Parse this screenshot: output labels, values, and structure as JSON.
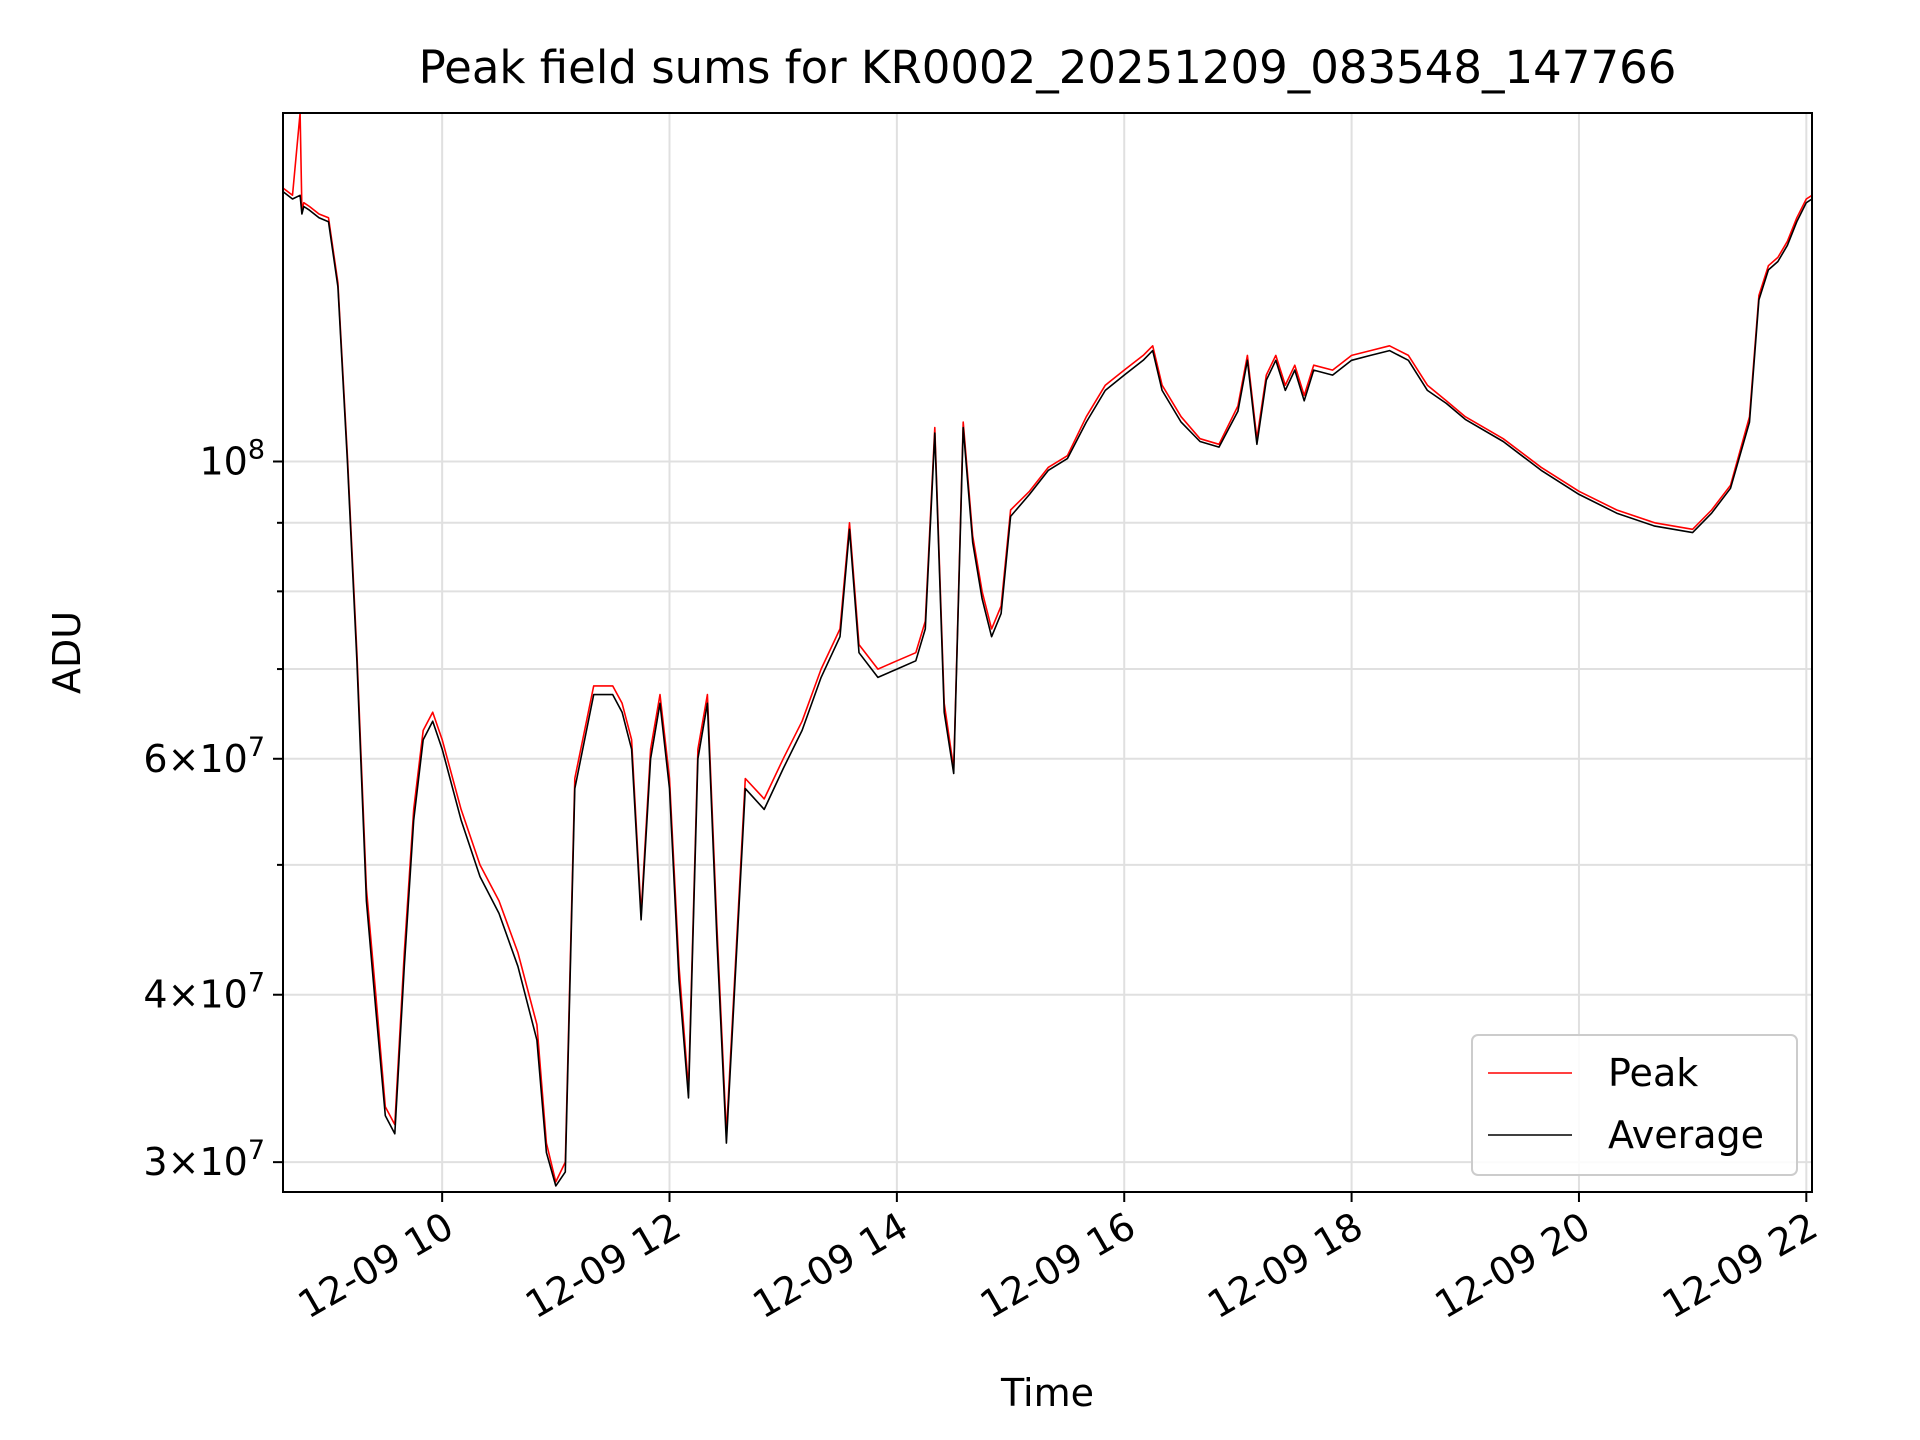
{
  "chart_data": {
    "type": "line",
    "title": "Peak field sums for KR0002_20251209_083548_147766",
    "xlabel": "Time",
    "ylabel": "ADU",
    "yscale": "log",
    "grid": true,
    "legend_position": "bottom-right",
    "xlim": [
      "2025-12-09 08:36",
      "2025-12-09 22:03"
    ],
    "ylim": [
      28500000,
      182000000
    ],
    "x_ticks": [
      {
        "value": "2025-12-09 10:00",
        "label": "12-09 10"
      },
      {
        "value": "2025-12-09 12:00",
        "label": "12-09 12"
      },
      {
        "value": "2025-12-09 14:00",
        "label": "12-09 14"
      },
      {
        "value": "2025-12-09 16:00",
        "label": "12-09 16"
      },
      {
        "value": "2025-12-09 18:00",
        "label": "12-09 18"
      },
      {
        "value": "2025-12-09 20:00",
        "label": "12-09 20"
      },
      {
        "value": "2025-12-09 22:00",
        "label": "12-09 22"
      }
    ],
    "y_ticks": [
      {
        "value": 30000000,
        "mantissa": "3",
        "times": "×",
        "base": "10",
        "exp": "7"
      },
      {
        "value": 40000000,
        "mantissa": "4",
        "times": "×",
        "base": "10",
        "exp": "7"
      },
      {
        "value": 60000000,
        "mantissa": "6",
        "times": "×",
        "base": "10",
        "exp": "7"
      },
      {
        "value": 100000000,
        "mantissa": "",
        "times": "",
        "base": "10",
        "exp": "8"
      }
    ],
    "y_minor_gridlines": [
      50000000,
      70000000,
      80000000,
      90000000
    ],
    "series": [
      {
        "name": "Peak",
        "color": "#ff0000",
        "x": [
          "2025-12-09 08:36",
          "2025-12-09 08:41",
          "2025-12-09 08:45",
          "2025-12-09 08:46",
          "2025-12-09 08:47",
          "2025-12-09 08:50",
          "2025-12-09 08:55",
          "2025-12-09 09:00",
          "2025-12-09 09:05",
          "2025-12-09 09:10",
          "2025-12-09 09:15",
          "2025-12-09 09:20",
          "2025-12-09 09:25",
          "2025-12-09 09:30",
          "2025-12-09 09:35",
          "2025-12-09 09:40",
          "2025-12-09 09:45",
          "2025-12-09 09:50",
          "2025-12-09 09:55",
          "2025-12-09 10:00",
          "2025-12-09 10:10",
          "2025-12-09 10:20",
          "2025-12-09 10:30",
          "2025-12-09 10:40",
          "2025-12-09 10:50",
          "2025-12-09 10:55",
          "2025-12-09 11:00",
          "2025-12-09 11:05",
          "2025-12-09 11:10",
          "2025-12-09 11:20",
          "2025-12-09 11:30",
          "2025-12-09 11:35",
          "2025-12-09 11:40",
          "2025-12-09 11:45",
          "2025-12-09 11:50",
          "2025-12-09 11:55",
          "2025-12-09 12:00",
          "2025-12-09 12:05",
          "2025-12-09 12:10",
          "2025-12-09 12:15",
          "2025-12-09 12:20",
          "2025-12-09 12:25",
          "2025-12-09 12:30",
          "2025-12-09 12:40",
          "2025-12-09 12:50",
          "2025-12-09 13:00",
          "2025-12-09 13:10",
          "2025-12-09 13:20",
          "2025-12-09 13:30",
          "2025-12-09 13:35",
          "2025-12-09 13:40",
          "2025-12-09 13:50",
          "2025-12-09 14:00",
          "2025-12-09 14:10",
          "2025-12-09 14:15",
          "2025-12-09 14:20",
          "2025-12-09 14:25",
          "2025-12-09 14:30",
          "2025-12-09 14:35",
          "2025-12-09 14:40",
          "2025-12-09 14:45",
          "2025-12-09 14:50",
          "2025-12-09 14:55",
          "2025-12-09 15:00",
          "2025-12-09 15:10",
          "2025-12-09 15:20",
          "2025-12-09 15:30",
          "2025-12-09 15:40",
          "2025-12-09 15:50",
          "2025-12-09 16:00",
          "2025-12-09 16:10",
          "2025-12-09 16:15",
          "2025-12-09 16:20",
          "2025-12-09 16:30",
          "2025-12-09 16:40",
          "2025-12-09 16:50",
          "2025-12-09 17:00",
          "2025-12-09 17:05",
          "2025-12-09 17:10",
          "2025-12-09 17:15",
          "2025-12-09 17:20",
          "2025-12-09 17:25",
          "2025-12-09 17:30",
          "2025-12-09 17:35",
          "2025-12-09 17:40",
          "2025-12-09 17:50",
          "2025-12-09 18:00",
          "2025-12-09 18:10",
          "2025-12-09 18:20",
          "2025-12-09 18:30",
          "2025-12-09 18:40",
          "2025-12-09 18:50",
          "2025-12-09 19:00",
          "2025-12-09 19:20",
          "2025-12-09 19:40",
          "2025-12-09 20:00",
          "2025-12-09 20:20",
          "2025-12-09 20:40",
          "2025-12-09 21:00",
          "2025-12-09 21:10",
          "2025-12-09 21:20",
          "2025-12-09 21:30",
          "2025-12-09 21:35",
          "2025-12-09 21:40",
          "2025-12-09 21:45",
          "2025-12-09 21:50",
          "2025-12-09 21:55",
          "2025-12-09 22:00",
          "2025-12-09 22:03"
        ],
        "y": [
          160000000,
          158000000,
          182000000,
          154000000,
          156000000,
          155000000,
          153000000,
          152000000,
          136000000,
          101000000,
          72000000,
          48000000,
          40000000,
          33000000,
          32000000,
          43000000,
          55000000,
          63000000,
          65000000,
          62000000,
          55000000,
          50000000,
          47000000,
          43000000,
          38000000,
          31000000,
          29000000,
          30000000,
          58000000,
          68000000,
          68000000,
          66000000,
          62000000,
          46000000,
          61000000,
          67000000,
          58000000,
          42000000,
          34000000,
          61000000,
          67000000,
          45000000,
          31500000,
          58000000,
          56000000,
          60000000,
          64000000,
          70000000,
          75000000,
          90000000,
          73000000,
          70000000,
          71000000,
          72000000,
          76000000,
          106000000,
          66000000,
          59000000,
          107000000,
          88000000,
          80000000,
          75000000,
          78000000,
          92000000,
          95000000,
          99000000,
          101000000,
          108000000,
          114000000,
          117000000,
          120000000,
          122000000,
          114000000,
          108000000,
          104000000,
          103000000,
          110000000,
          120000000,
          104000000,
          116000000,
          120000000,
          114000000,
          118000000,
          112000000,
          118000000,
          117000000,
          120000000,
          121000000,
          122000000,
          120000000,
          114000000,
          111000000,
          108000000,
          104000000,
          99000000,
          95000000,
          92000000,
          90000000,
          89000000,
          92000000,
          96000000,
          108000000,
          133000000,
          140000000,
          142000000,
          146000000,
          152000000,
          157000000,
          158000000
        ]
      },
      {
        "name": "Average",
        "color": "#000000",
        "x": [
          "2025-12-09 08:36",
          "2025-12-09 08:41",
          "2025-12-09 08:45",
          "2025-12-09 08:46",
          "2025-12-09 08:47",
          "2025-12-09 08:50",
          "2025-12-09 08:55",
          "2025-12-09 09:00",
          "2025-12-09 09:05",
          "2025-12-09 09:10",
          "2025-12-09 09:15",
          "2025-12-09 09:20",
          "2025-12-09 09:25",
          "2025-12-09 09:30",
          "2025-12-09 09:35",
          "2025-12-09 09:40",
          "2025-12-09 09:45",
          "2025-12-09 09:50",
          "2025-12-09 09:55",
          "2025-12-09 10:00",
          "2025-12-09 10:10",
          "2025-12-09 10:20",
          "2025-12-09 10:30",
          "2025-12-09 10:40",
          "2025-12-09 10:50",
          "2025-12-09 10:55",
          "2025-12-09 11:00",
          "2025-12-09 11:05",
          "2025-12-09 11:10",
          "2025-12-09 11:20",
          "2025-12-09 11:30",
          "2025-12-09 11:35",
          "2025-12-09 11:40",
          "2025-12-09 11:45",
          "2025-12-09 11:50",
          "2025-12-09 11:55",
          "2025-12-09 12:00",
          "2025-12-09 12:05",
          "2025-12-09 12:10",
          "2025-12-09 12:15",
          "2025-12-09 12:20",
          "2025-12-09 12:25",
          "2025-12-09 12:30",
          "2025-12-09 12:40",
          "2025-12-09 12:50",
          "2025-12-09 13:00",
          "2025-12-09 13:10",
          "2025-12-09 13:20",
          "2025-12-09 13:30",
          "2025-12-09 13:35",
          "2025-12-09 13:40",
          "2025-12-09 13:50",
          "2025-12-09 14:00",
          "2025-12-09 14:10",
          "2025-12-09 14:15",
          "2025-12-09 14:20",
          "2025-12-09 14:25",
          "2025-12-09 14:30",
          "2025-12-09 14:35",
          "2025-12-09 14:40",
          "2025-12-09 14:45",
          "2025-12-09 14:50",
          "2025-12-09 14:55",
          "2025-12-09 15:00",
          "2025-12-09 15:10",
          "2025-12-09 15:20",
          "2025-12-09 15:30",
          "2025-12-09 15:40",
          "2025-12-09 15:50",
          "2025-12-09 16:00",
          "2025-12-09 16:10",
          "2025-12-09 16:15",
          "2025-12-09 16:20",
          "2025-12-09 16:30",
          "2025-12-09 16:40",
          "2025-12-09 16:50",
          "2025-12-09 17:00",
          "2025-12-09 17:05",
          "2025-12-09 17:10",
          "2025-12-09 17:15",
          "2025-12-09 17:20",
          "2025-12-09 17:25",
          "2025-12-09 17:30",
          "2025-12-09 17:35",
          "2025-12-09 17:40",
          "2025-12-09 17:50",
          "2025-12-09 18:00",
          "2025-12-09 18:10",
          "2025-12-09 18:20",
          "2025-12-09 18:30",
          "2025-12-09 18:40",
          "2025-12-09 18:50",
          "2025-12-09 19:00",
          "2025-12-09 19:20",
          "2025-12-09 19:40",
          "2025-12-09 20:00",
          "2025-12-09 20:20",
          "2025-12-09 20:40",
          "2025-12-09 21:00",
          "2025-12-09 21:10",
          "2025-12-09 21:20",
          "2025-12-09 21:30",
          "2025-12-09 21:35",
          "2025-12-09 21:40",
          "2025-12-09 21:45",
          "2025-12-09 21:50",
          "2025-12-09 21:55",
          "2025-12-09 22:00",
          "2025-12-09 22:03"
        ],
        "y": [
          159000000,
          157000000,
          158000000,
          153000000,
          155000000,
          154000000,
          152000000,
          151000000,
          135000000,
          100000000,
          71000000,
          47000000,
          39000000,
          32500000,
          31500000,
          42000000,
          54000000,
          62000000,
          64000000,
          61000000,
          54000000,
          49000000,
          46000000,
          42000000,
          37000000,
          30500000,
          28800000,
          29500000,
          57000000,
          67000000,
          67000000,
          65000000,
          61000000,
          45500000,
          60000000,
          66000000,
          57000000,
          41000000,
          33500000,
          60000000,
          66000000,
          44000000,
          31000000,
          57000000,
          55000000,
          59000000,
          63000000,
          69000000,
          74000000,
          89000000,
          72000000,
          69000000,
          70000000,
          71000000,
          75000000,
          105000000,
          65000000,
          58500000,
          106000000,
          87000000,
          79000000,
          74000000,
          77000000,
          91000000,
          94500000,
          98500000,
          100500000,
          107000000,
          113000000,
          116000000,
          119000000,
          121000000,
          113000000,
          107000000,
          103500000,
          102500000,
          109000000,
          119000000,
          103000000,
          115000000,
          119000000,
          113000000,
          117000000,
          111000000,
          117000000,
          116000000,
          119000000,
          120000000,
          121000000,
          119000000,
          113000000,
          110500000,
          107500000,
          103500000,
          98500000,
          94500000,
          91500000,
          89500000,
          88500000,
          91500000,
          95500000,
          107000000,
          132000000,
          139000000,
          141000000,
          145000000,
          151000000,
          156000000,
          157000000
        ]
      }
    ]
  }
}
